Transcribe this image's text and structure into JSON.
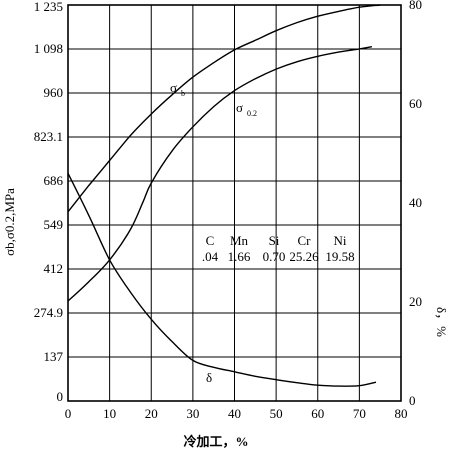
{
  "chart_data": {
    "type": "line",
    "xlabel": "冷加工，%",
    "ylabel_left": "σb,σ0.2,MPa",
    "ylabel_right": "δ，%",
    "x_ticks": [
      "0",
      "10",
      "20",
      "30",
      "40",
      "50",
      "60",
      "70",
      "80"
    ],
    "y_left_ticks": [
      "0",
      "137",
      "274.9",
      "412",
      "549",
      "686",
      "823.1",
      "960",
      "1 098",
      "1 235"
    ],
    "y_right_ticks": [
      "0",
      "20",
      "40",
      "60",
      "80"
    ],
    "xlim": [
      0,
      80
    ],
    "ylim_left": [
      0,
      1235
    ],
    "ylim_right": [
      0,
      80
    ],
    "grid": true,
    "series": [
      {
        "name": "σb",
        "axis": "left",
        "x": [
          0,
          5,
          10,
          15,
          20,
          25,
          30,
          35,
          40,
          45,
          50,
          55,
          60,
          65,
          70,
          75
        ],
        "y": [
          590,
          672,
          750,
          828,
          895,
          955,
          1010,
          1055,
          1095,
          1125,
          1155,
          1180,
          1200,
          1215,
          1228,
          1235
        ]
      },
      {
        "name": "σ0.2",
        "axis": "left",
        "x": [
          0,
          5,
          10,
          15,
          18,
          20,
          25,
          30,
          35,
          40,
          45,
          50,
          55,
          60,
          65,
          70,
          73
        ],
        "y": [
          312,
          372,
          440,
          535,
          620,
          680,
          780,
          855,
          918,
          968,
          1005,
          1035,
          1058,
          1075,
          1088,
          1098,
          1105
        ]
      },
      {
        "name": "δ",
        "axis": "right",
        "x": [
          0,
          5,
          10,
          15,
          20,
          25,
          30,
          35,
          40,
          45,
          50,
          55,
          60,
          65,
          70,
          74
        ],
        "y": [
          46,
          37.5,
          28.5,
          22,
          16.5,
          12,
          8.2,
          6.8,
          5.9,
          5,
          4.3,
          3.7,
          3.2,
          3,
          3.1,
          3.8
        ]
      }
    ],
    "composition": {
      "elements": [
        "C",
        "Mn",
        "Si",
        "Cr",
        "Ni"
      ],
      "values": [
        ".04",
        "1.66",
        "0.70",
        "25.26",
        "19.58"
      ]
    },
    "curve_labels": {
      "sb_main": "σ",
      "sb_sub": "b",
      "s02_main": "σ",
      "s02_sub": "0.2",
      "delta": "δ"
    }
  }
}
